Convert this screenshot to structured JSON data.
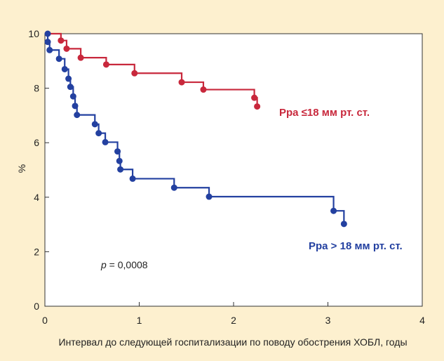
{
  "chart_data": {
    "type": "line",
    "xlabel": "Интервал до следующей госпитализации по поводу обострения ХОБЛ, годы",
    "ylabel": "%",
    "xlim": [
      0,
      4
    ],
    "ylim": [
      0,
      10
    ],
    "xticks": [
      "0",
      "1",
      "2",
      "3",
      "4"
    ],
    "yticks": [
      "0",
      "2",
      "4",
      "6",
      "8",
      "10"
    ],
    "grid": false,
    "annotation": {
      "prefix": "p",
      "text": " = 0,0008"
    },
    "series": [
      {
        "name": "Ppa ≤18 мм рт. ст.",
        "color": "#c8283c",
        "steps": [
          [
            0.0,
            10.0
          ],
          [
            0.17,
            9.75
          ],
          [
            0.23,
            9.45
          ],
          [
            0.38,
            9.12
          ],
          [
            0.65,
            8.87
          ],
          [
            0.95,
            8.55
          ],
          [
            1.45,
            8.22
          ],
          [
            1.68,
            7.95
          ],
          [
            2.22,
            7.65
          ],
          [
            2.25,
            7.33
          ]
        ],
        "censor": [
          [
            0.17,
            9.75
          ],
          [
            0.23,
            9.45
          ],
          [
            0.38,
            9.12
          ],
          [
            0.65,
            8.87
          ],
          [
            0.95,
            8.55
          ],
          [
            1.45,
            8.22
          ],
          [
            1.68,
            7.95
          ],
          [
            2.22,
            7.65
          ],
          [
            2.25,
            7.33
          ]
        ]
      },
      {
        "name": "Ppa > 18 мм рт. ст.",
        "color": "#2340a0",
        "steps": [
          [
            0.0,
            10.0
          ],
          [
            0.03,
            9.7
          ],
          [
            0.05,
            9.4
          ],
          [
            0.15,
            9.08
          ],
          [
            0.21,
            8.7
          ],
          [
            0.25,
            8.35
          ],
          [
            0.27,
            8.05
          ],
          [
            0.3,
            7.7
          ],
          [
            0.32,
            7.35
          ],
          [
            0.34,
            7.02
          ],
          [
            0.53,
            6.68
          ],
          [
            0.57,
            6.35
          ],
          [
            0.64,
            6.02
          ],
          [
            0.77,
            5.68
          ],
          [
            0.79,
            5.33
          ],
          [
            0.8,
            5.02
          ],
          [
            0.93,
            4.68
          ],
          [
            1.37,
            4.35
          ],
          [
            1.74,
            4.02
          ],
          [
            3.06,
            3.5
          ],
          [
            3.17,
            3.02
          ]
        ],
        "censor": [
          [
            0.03,
            10.0
          ],
          [
            0.03,
            9.7
          ],
          [
            0.05,
            9.4
          ],
          [
            0.15,
            9.08
          ],
          [
            0.21,
            8.7
          ],
          [
            0.25,
            8.35
          ],
          [
            0.27,
            8.05
          ],
          [
            0.3,
            7.7
          ],
          [
            0.32,
            7.35
          ],
          [
            0.34,
            7.02
          ],
          [
            0.53,
            6.68
          ],
          [
            0.57,
            6.35
          ],
          [
            0.64,
            6.02
          ],
          [
            0.77,
            5.68
          ],
          [
            0.79,
            5.33
          ],
          [
            0.8,
            5.02
          ],
          [
            0.93,
            4.68
          ],
          [
            1.37,
            4.35
          ],
          [
            1.74,
            4.02
          ],
          [
            3.06,
            3.5
          ],
          [
            3.17,
            3.02
          ]
        ]
      }
    ]
  }
}
